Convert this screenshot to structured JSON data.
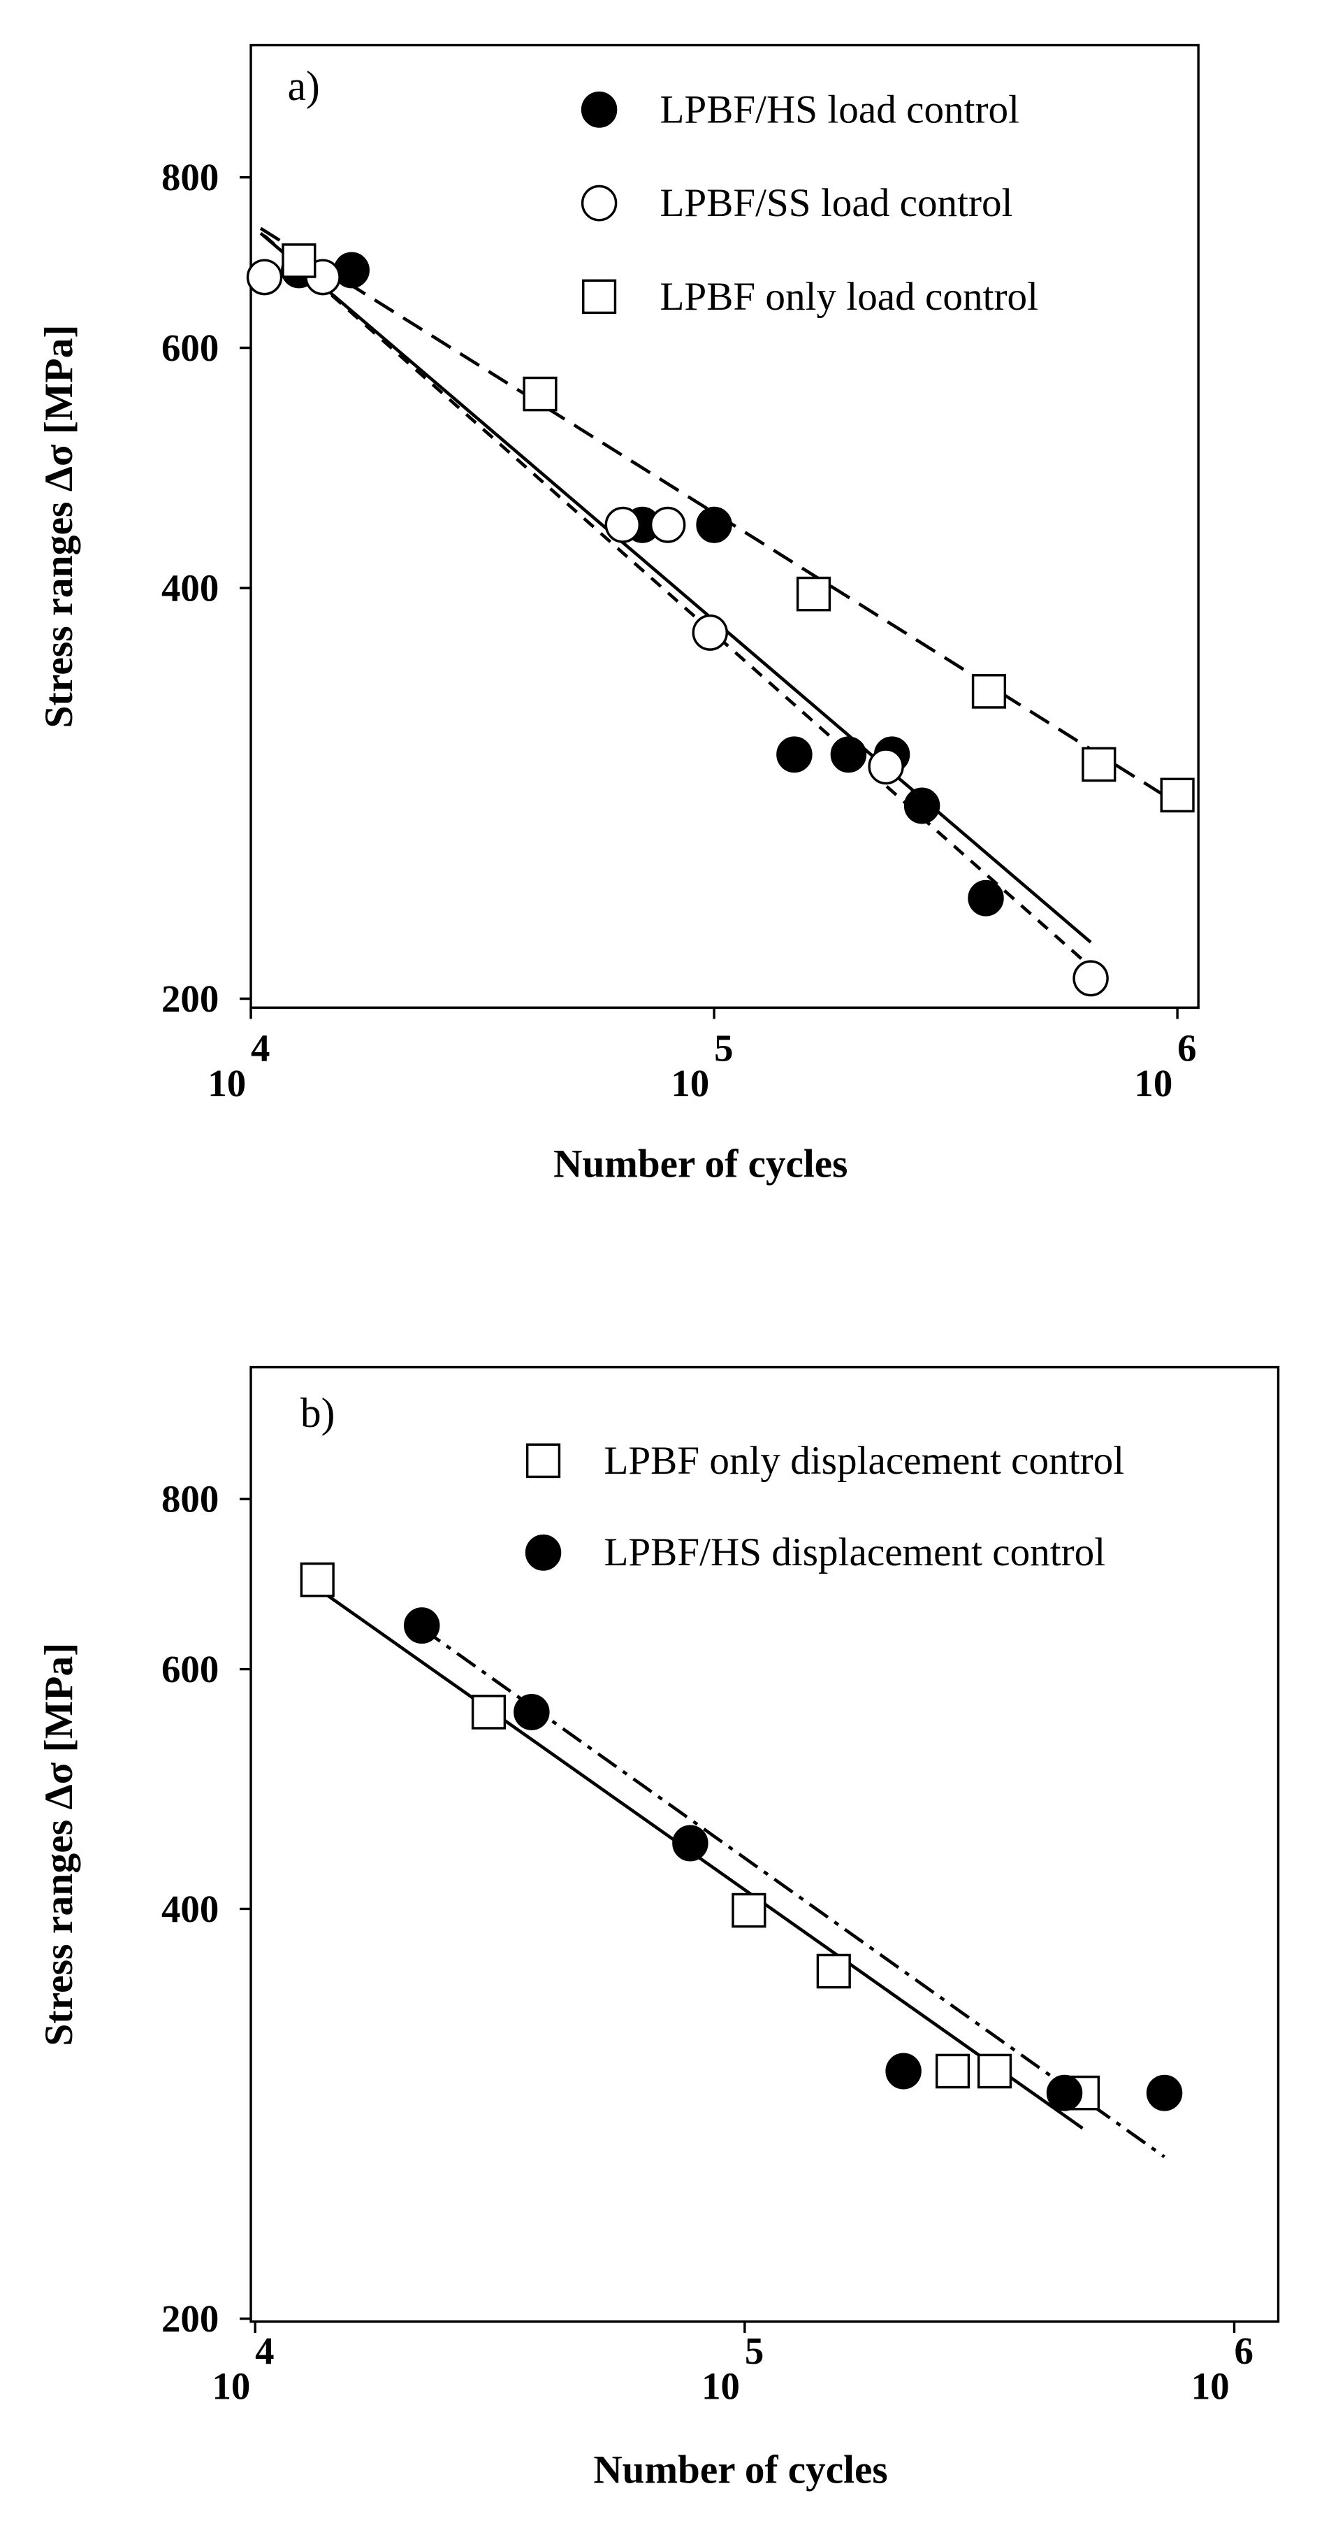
{
  "chart_data": [
    {
      "type": "scatter",
      "label": "a)",
      "x_label": "Number of cycles",
      "y_label": "Stress ranges Δσ [MPa]",
      "log_x": true,
      "log_y": true,
      "xlim": [
        10000,
        1110000
      ],
      "ylim": [
        197,
        1000
      ],
      "xticks": [
        {
          "value": 10000,
          "label": "10",
          "exponent": "4"
        },
        {
          "value": 100000,
          "label": "10",
          "exponent": "5"
        },
        {
          "value": 1000000,
          "label": "10",
          "exponent": "6"
        }
      ],
      "yticks": [
        200,
        400,
        600,
        800
      ],
      "series": [
        {
          "name": "LPBF/HS load control",
          "marker": "circle",
          "filled": true,
          "color": "#000000",
          "x": [
            12700,
            16500,
            70000,
            100000,
            149000,
            195000,
            242000,
            281000,
            386000
          ],
          "values": [
            684,
            684,
            445,
            445,
            302,
            302,
            302,
            277,
            237
          ]
        },
        {
          "name": "LPBF/SS load control",
          "marker": "circle",
          "filled": false,
          "color": "#000000",
          "x": [
            10700,
            14300,
            63500,
            79400,
            98000,
            235000,
            650000
          ],
          "values": [
            676,
            676,
            445,
            445,
            371,
            296,
            207
          ]
        },
        {
          "name": "LPBF only load control",
          "marker": "square",
          "filled": false,
          "color": "#000000",
          "x": [
            12700,
            42100,
            164000,
            392000,
            677000,
            1000000
          ],
          "values": [
            695,
            555,
            396,
            336,
            297,
            282
          ]
        }
      ],
      "fits": [
        {
          "x": [
            10500,
            650000
          ],
          "values": [
            728,
            220
          ],
          "dash": "none"
        },
        {
          "x": [
            10500,
            1000000
          ],
          "values": [
            734,
            278
          ],
          "dash": "14 7"
        },
        {
          "x": [
            10700,
            650000
          ],
          "values": [
            725,
            211
          ],
          "dash": "8 6"
        }
      ]
    },
    {
      "type": "scatter",
      "label": "b)",
      "x_label": "Number of cycles",
      "y_label": "Stress ranges Δσ [MPa]",
      "log_x": true,
      "log_y": true,
      "xlim": [
        9800,
        1230000
      ],
      "ylim": [
        199,
        1000
      ],
      "xticks": [
        {
          "value": 10000,
          "label": "10",
          "exponent": "4"
        },
        {
          "value": 100000,
          "label": "10",
          "exponent": "5"
        },
        {
          "value": 1000000,
          "label": "10",
          "exponent": "6"
        }
      ],
      "yticks": [
        200,
        400,
        600,
        800
      ],
      "series": [
        {
          "name": "LPBF only displacement control",
          "marker": "square",
          "filled": false,
          "color": "#000000",
          "x": [
            13400,
            30000,
            102000,
            152000,
            266000,
            324000,
            490000
          ],
          "values": [
            698,
            558,
            399,
            360,
            304,
            304,
            293
          ]
        },
        {
          "name": "LPBF/HS displacement control",
          "marker": "circle",
          "filled": true,
          "color": "#000000",
          "x": [
            21900,
            36700,
            77400,
            211000,
            450000,
            720000
          ],
          "values": [
            646,
            558,
            447,
            304,
            293,
            293
          ]
        }
      ],
      "fits": [
        {
          "x": [
            13400,
            490000
          ],
          "values": [
            688,
            276
          ],
          "dash": "none"
        },
        {
          "x": [
            21900,
            720000
          ],
          "values": [
            643,
            263
          ],
          "dash": "14 5 3 5"
        }
      ]
    }
  ]
}
